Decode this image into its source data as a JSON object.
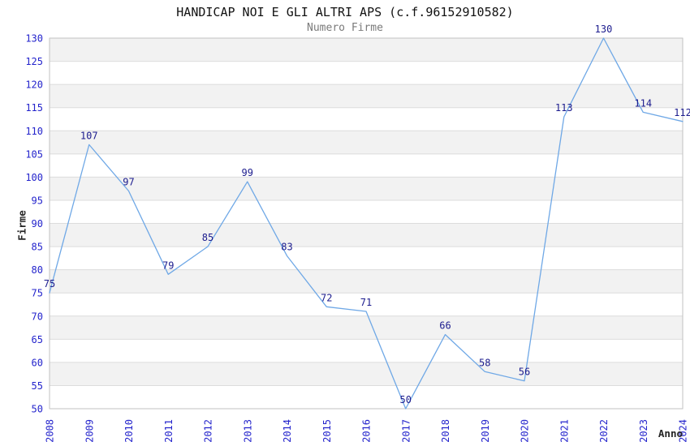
{
  "chart_data": {
    "type": "line",
    "title": "HANDICAP NOI E GLI ALTRI APS (c.f.96152910582)",
    "subtitle": "Numero Firme",
    "xlabel": "Anno",
    "ylabel": "Firme",
    "x": [
      2008,
      2009,
      2010,
      2011,
      2012,
      2013,
      2014,
      2015,
      2016,
      2017,
      2018,
      2019,
      2020,
      2021,
      2022,
      2023,
      2024
    ],
    "series": [
      {
        "name": "Numero Firme",
        "values": [
          75,
          107,
          97,
          79,
          85,
          99,
          83,
          72,
          71,
          50,
          66,
          58,
          56,
          113,
          130,
          114,
          112
        ]
      }
    ],
    "ylim": [
      50,
      130
    ],
    "ytick_step": 5,
    "x_tick_rotation": -90,
    "grid": "horizontal gridlines every 5 units with alternating light-gray bands",
    "legend": "none",
    "data_labels_visible": true,
    "colors": {
      "line": "#6fa8e6",
      "tick_labels": "#2424cc",
      "data_labels": "#1c1c8e",
      "band": "#f2f2f2",
      "gridline": "#dcdcdc",
      "plot_border": "#c2c2c2",
      "title": "#121212",
      "subtitle": "#7a7a7a",
      "axis_labels": "#262626"
    }
  }
}
